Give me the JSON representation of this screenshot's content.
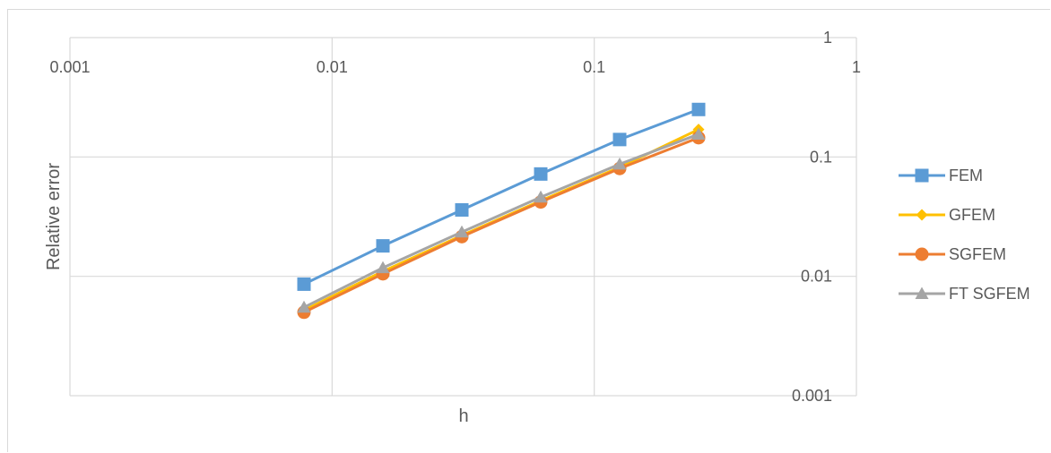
{
  "chart_data": {
    "type": "line",
    "xscale": "log",
    "yscale": "log",
    "xlabel": "h",
    "ylabel": "Relative error",
    "xlim": [
      0.001,
      1
    ],
    "ylim": [
      0.001,
      1
    ],
    "xticks": [
      "0.001",
      "0.01",
      "0.1",
      "1"
    ],
    "yticks": [
      "0.001",
      "0.01",
      "0.1",
      "1"
    ],
    "grid": true,
    "legend_position": "right",
    "x": [
      0.0078125,
      0.015625,
      0.03125,
      0.0625,
      0.125,
      0.25
    ],
    "series": [
      {
        "name": "FEM",
        "color": "#5b9bd5",
        "marker": "square",
        "values": [
          0.0086,
          0.018,
          0.036,
          0.072,
          0.14,
          0.25
        ]
      },
      {
        "name": "GFEM",
        "color": "#ffc000",
        "marker": "diamond",
        "values": [
          0.0052,
          0.011,
          0.022,
          0.043,
          0.082,
          0.17
        ]
      },
      {
        "name": "SGFEM",
        "color": "#ed7d31",
        "marker": "circle",
        "values": [
          0.005,
          0.0105,
          0.0215,
          0.042,
          0.08,
          0.145
        ]
      },
      {
        "name": "FT SGFEM",
        "color": "#a5a5a5",
        "marker": "triangle",
        "values": [
          0.0055,
          0.0118,
          0.0235,
          0.046,
          0.087,
          0.155
        ]
      }
    ]
  }
}
